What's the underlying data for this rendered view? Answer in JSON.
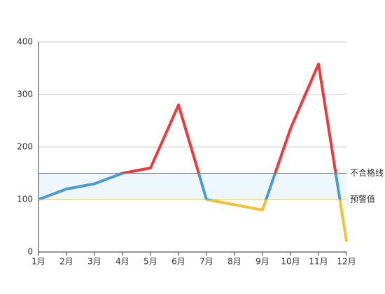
{
  "chart_data": {
    "type": "line",
    "categories": [
      "1月",
      "2月",
      "3月",
      "4月",
      "5月",
      "6月",
      "7月",
      "8月",
      "9月",
      "10月",
      "11月",
      "12月"
    ],
    "values": [
      100,
      120,
      130,
      150,
      160,
      280,
      100,
      90,
      80,
      235,
      358,
      20
    ],
    "ylim": [
      0,
      400
    ],
    "yticks": [
      0,
      100,
      200,
      300,
      400
    ],
    "grid": true,
    "pieces": [
      {
        "lte": 100,
        "color": "#f2c230"
      },
      {
        "gt": 100,
        "lte": 150,
        "color": "#4a9bd1"
      },
      {
        "gt": 150,
        "color": "#ee3a3a"
      }
    ],
    "mark_area": {
      "from": 100,
      "to": 150,
      "color": "#eef8fc"
    },
    "mark_lines": [
      {
        "value": 150,
        "label": "不合格线",
        "color": "#ee3a3a"
      },
      {
        "value": 100,
        "label": "预警值",
        "color": "#f2c230"
      }
    ]
  }
}
